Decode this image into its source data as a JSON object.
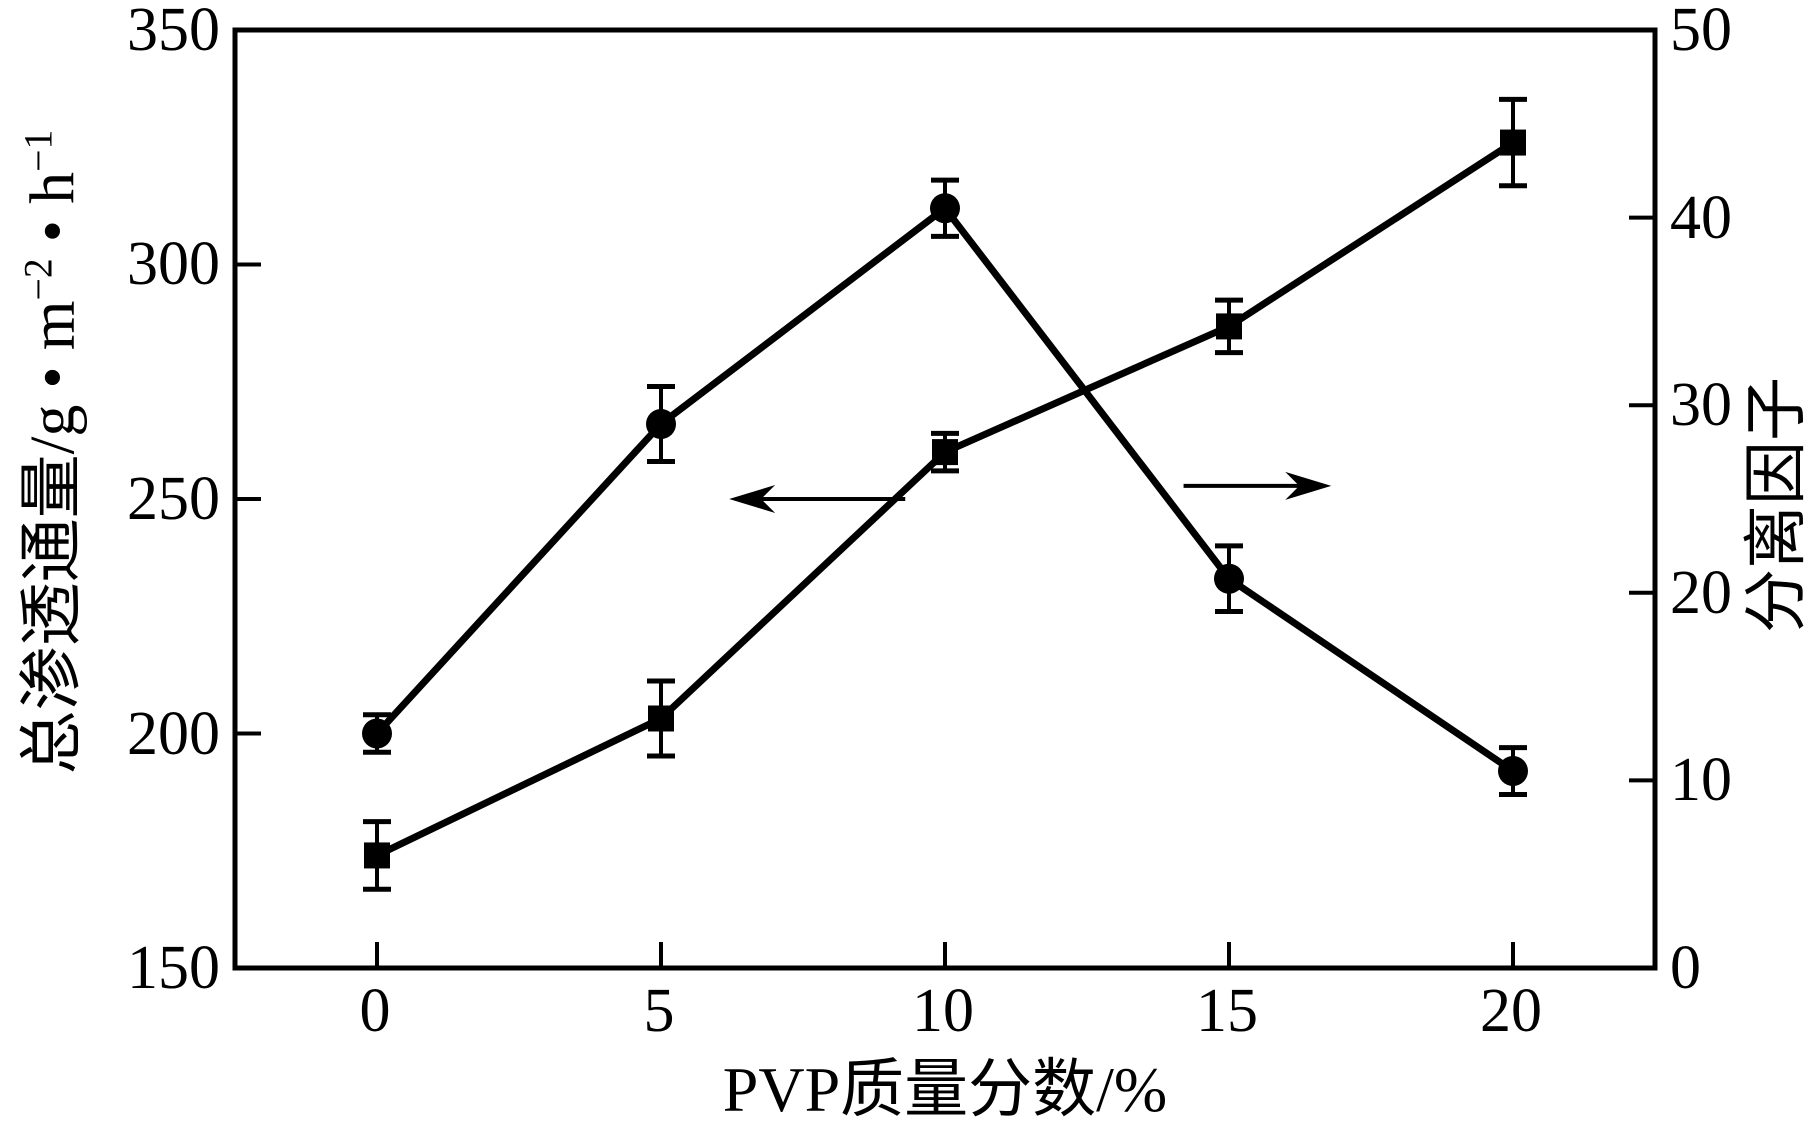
{
  "axes": {
    "x": {
      "title": "PVP质量分数/%",
      "ticks": [
        0,
        5,
        10,
        15,
        20
      ],
      "tick_labels": [
        "0",
        "5",
        "10",
        "15",
        "20"
      ],
      "range": [
        -2.5,
        22.5
      ]
    },
    "left": {
      "title": "总渗透通量/g·m−2·h−1",
      "title_parts": [
        "总渗透通量/g • m",
        "−2",
        " • h",
        "−1"
      ],
      "ticks": [
        350,
        300,
        250,
        200,
        150
      ],
      "tick_labels": [
        "350",
        "300",
        "250",
        "200",
        "150"
      ],
      "range": [
        150,
        350
      ]
    },
    "right": {
      "title": "分离因子",
      "ticks": [
        50,
        40,
        30,
        20,
        10,
        0
      ],
      "tick_labels": [
        "50",
        "40",
        "30",
        "20",
        "10",
        "0"
      ],
      "range": [
        0,
        50
      ]
    }
  },
  "chart_data": {
    "type": "line",
    "x": [
      0,
      5,
      10,
      15,
      20
    ],
    "xlabel": "PVP质量分数/%",
    "grid": false,
    "legend": "none (axis indicated by arrows)",
    "series": [
      {
        "name": "总渗透通量",
        "axis": "left",
        "marker": "circle",
        "ylabel": "总渗透通量/g·m−2·h−1",
        "ylim": [
          150,
          350
        ],
        "values": [
          200,
          266,
          312,
          233,
          192
        ],
        "error_bars": [
          4,
          8,
          6,
          7,
          5
        ]
      },
      {
        "name": "分离因子",
        "axis": "right",
        "marker": "square",
        "ylabel": "分离因子",
        "ylim": [
          0,
          50
        ],
        "values": [
          6,
          13.3,
          27.5,
          34.2,
          44
        ],
        "error_bars": [
          1.8,
          2,
          1,
          1.4,
          2.3
        ]
      }
    ],
    "annotations": [
      {
        "type": "arrow",
        "direction": "left",
        "axis": "left",
        "from": [
          9.3,
          250
        ],
        "to": [
          6.2,
          250
        ]
      },
      {
        "type": "arrow",
        "direction": "right",
        "axis": "right",
        "from": [
          14.2,
          25.7
        ],
        "to": [
          16.8,
          25.7
        ]
      }
    ],
    "colors": {
      "line": "#000000",
      "marker": "#000000",
      "background": "#ffffff"
    }
  }
}
